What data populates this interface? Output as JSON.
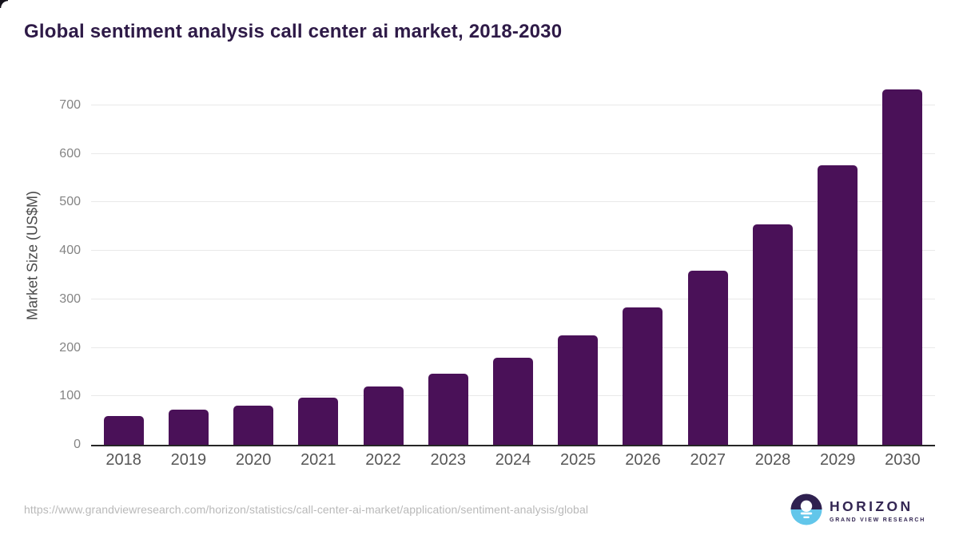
{
  "title": "Global sentiment analysis call center ai market, 2018-2030",
  "chart_data": {
    "type": "bar",
    "title": "Global sentiment analysis call center ai market, 2018-2030",
    "categories": [
      "2018",
      "2019",
      "2020",
      "2021",
      "2022",
      "2023",
      "2024",
      "2025",
      "2026",
      "2027",
      "2028",
      "2029",
      "2030"
    ],
    "values": [
      60,
      73,
      81,
      97,
      120,
      146,
      180,
      225,
      284,
      359,
      455,
      576,
      733
    ],
    "xlabel": "",
    "ylabel": "Market Size (US$M)",
    "ylim": [
      0,
      738
    ],
    "yticks": [
      0,
      100,
      200,
      300,
      400,
      500,
      600,
      700
    ],
    "grid": true,
    "legend": "none",
    "bar_color": "#4a1158"
  },
  "footer": {
    "source_url": "https://www.grandviewresearch.com/horizon/statistics/call-center-ai-market/application/sentiment-analysis/global",
    "logo": {
      "name": "HORIZON",
      "subtitle": "GRAND VIEW RESEARCH",
      "purple": "#332653",
      "blue": "#62c6ea"
    }
  },
  "colors": {
    "title_text": "#2e1a47",
    "bar": "#4a1158",
    "axis_line": "#262626",
    "gridline": "#e9e9e9",
    "ytick_label": "#848484",
    "y_axis_label": "#4a4a4a",
    "x_tick_label": "#565656",
    "source_text": "#b9b9b9",
    "background": "#ffffff"
  }
}
